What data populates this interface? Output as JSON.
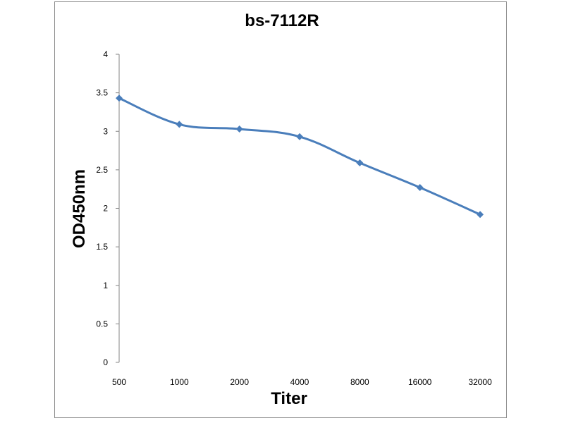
{
  "chart_data": {
    "type": "line",
    "title": "bs-7112R",
    "xlabel": "Titer",
    "ylabel": "OD450nm",
    "categories": [
      "500",
      "1000",
      "2000",
      "4000",
      "8000",
      "16000",
      "32000"
    ],
    "series": [
      {
        "values": [
          3.43,
          3.09,
          3.03,
          2.93,
          2.59,
          2.27,
          1.92
        ],
        "color": "#4a7ebb",
        "marker": "diamond"
      }
    ],
    "ylim": [
      0,
      4
    ],
    "yticks": [
      "0",
      "0.5",
      "1",
      "1.5",
      "2",
      "2.5",
      "3",
      "3.5",
      "4"
    ],
    "grid": false,
    "legend": "none"
  }
}
